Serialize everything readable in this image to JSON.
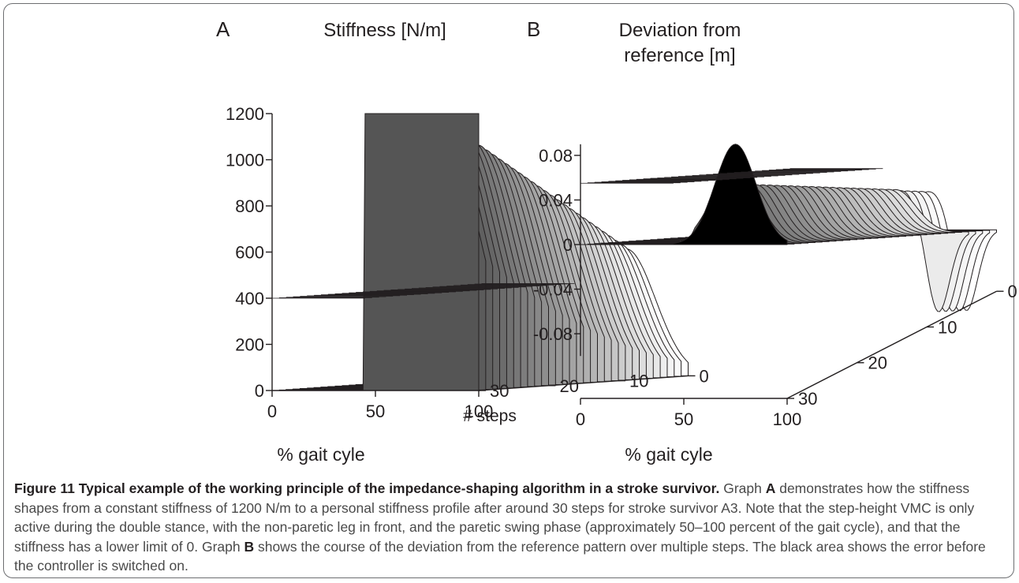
{
  "chart_data": [
    {
      "type": "surface3d",
      "panel_label": "A",
      "title": "Stiffness [N/m]",
      "zlabel": "",
      "xlabel": "% gait cyle",
      "ylabel": "# steps",
      "x_ticks": [
        0,
        50,
        100
      ],
      "y_ticks": [
        0,
        10,
        20,
        30
      ],
      "z_ticks": [
        0,
        200,
        400,
        600,
        800,
        1000,
        1200
      ],
      "xlim": [
        0,
        100
      ],
      "ylim": [
        0,
        30
      ],
      "zlim": [
        0,
        1200
      ],
      "initial_stiffness": 1200,
      "lower_limit": 0,
      "active_range_percent": [
        50,
        100
      ],
      "n_steps": 30,
      "series": [
        {
          "step": 0,
          "x": [
            0,
            45,
            50,
            60,
            70,
            80,
            90,
            100
          ],
          "y": [
            0,
            0,
            1200,
            1200,
            1200,
            1200,
            1200,
            1200
          ]
        },
        {
          "step": 5,
          "x": [
            0,
            45,
            50,
            60,
            70,
            80,
            90,
            100
          ],
          "y": [
            0,
            0,
            900,
            1150,
            1200,
            1000,
            650,
            380
          ]
        },
        {
          "step": 10,
          "x": [
            0,
            45,
            50,
            60,
            70,
            80,
            90,
            100
          ],
          "y": [
            0,
            0,
            700,
            1000,
            1050,
            780,
            380,
            120
          ]
        },
        {
          "step": 20,
          "x": [
            0,
            45,
            50,
            60,
            70,
            80,
            90,
            100
          ],
          "y": [
            0,
            0,
            480,
            750,
            800,
            560,
            180,
            0
          ]
        },
        {
          "step": 30,
          "x": [
            0,
            45,
            50,
            60,
            70,
            80,
            90,
            100
          ],
          "y": [
            0,
            0,
            260,
            520,
            560,
            360,
            60,
            0
          ]
        }
      ]
    },
    {
      "type": "surface3d",
      "panel_label": "B",
      "title": "Deviation from reference [m]",
      "title_lines": [
        "Deviation from",
        "reference [m]"
      ],
      "xlabel": "% gait cyle",
      "ylabel": "",
      "x_ticks": [
        0,
        50,
        100
      ],
      "y_ticks": [
        0,
        10,
        20,
        30
      ],
      "z_ticks": [
        -0.08,
        -0.04,
        0,
        0.04,
        0.08
      ],
      "xlim": [
        0,
        100
      ],
      "ylim": [
        0,
        30
      ],
      "zlim": [
        -0.1,
        0.1
      ],
      "n_steps": 30,
      "series": [
        {
          "step": 0,
          "x": [
            0,
            45,
            50,
            60,
            70,
            80,
            90,
            100
          ],
          "y": [
            0,
            0,
            0.03,
            0.075,
            0.09,
            0.07,
            0.03,
            0
          ]
        },
        {
          "step": 5,
          "x": [
            0,
            45,
            50,
            60,
            70,
            80,
            90,
            100
          ],
          "y": [
            0,
            0,
            0.025,
            0.05,
            0.055,
            0.04,
            0.02,
            0
          ]
        },
        {
          "step": 10,
          "x": [
            0,
            45,
            50,
            60,
            70,
            80,
            90,
            100
          ],
          "y": [
            0,
            0,
            0.02,
            0.04,
            0.045,
            0.03,
            0.015,
            0
          ]
        },
        {
          "step": 20,
          "x": [
            0,
            45,
            50,
            60,
            70,
            80,
            90,
            100
          ],
          "y": [
            0,
            0,
            0.018,
            0.035,
            0.04,
            0.025,
            0.01,
            0
          ]
        },
        {
          "step": 30,
          "x": [
            0,
            45,
            50,
            60,
            70,
            80,
            90,
            100
          ],
          "y": [
            0,
            0,
            0.015,
            0.03,
            0.035,
            0.0,
            -0.07,
            0
          ]
        }
      ]
    }
  ],
  "caption": {
    "heading": "Figure 11 Typical example of the working principle of the impedance-shaping algorithm in a stroke survivor.",
    "text_1": " Graph ",
    "bold_a": "A",
    "text_2": " demonstrates how the stiffness shapes from a constant stiffness of 1200 N/m to a personal stiffness profile after around 30 steps for stroke survivor A3. Note that the step-height VMC is only active during the double stance, with the non-paretic leg in front, and the paretic swing phase (approximately 50–100 percent of the gait cycle), and that the stiffness has a lower limit of 0. Graph ",
    "bold_b": "B",
    "text_3": " shows the course of the deviation from the reference pattern over multiple steps. The black area shows the error before the controller is switched on."
  }
}
